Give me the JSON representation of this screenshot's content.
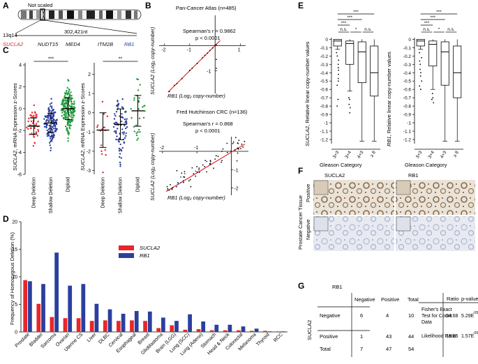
{
  "colors": {
    "red": "#e8262a",
    "blue": "#2b3f9e",
    "green": "#1f9a3a",
    "tissue_brown": "#8b6a4a",
    "tissue_blue": "#b8c0d8"
  },
  "panelA": {
    "letter": "A",
    "not_scaled": "Not scaled",
    "locus": "13q14",
    "span": "302,421nt",
    "genes": [
      "SUCLA2",
      "NUDT15",
      "MED4",
      "ITM2B",
      "RB1"
    ]
  },
  "panelB": {
    "letter": "B",
    "top": {
      "title": "Pan-Cancer Atlas (n=485)",
      "stat_line1": "Spearman's r = 0.9862",
      "stat_line2": "p < 0.0001",
      "xlabel": "RB1 (Log₂ copy-number)",
      "ylabel": "SUCLA2 (Log₂ copy-number)",
      "xticks": [
        "-2",
        "-1",
        "1"
      ],
      "yticks": [
        "-1"
      ]
    },
    "bottom": {
      "title": "Fred Hutchinson CRC (n=136)",
      "stat_line1": "Spearman's r = 0.868",
      "stat_line2": "p < 0.0001",
      "xlabel": "RB1 (Log₂ copy-number)",
      "ylabel": "SUCLA2 (Log₂ copy-number)",
      "xticks": [
        "-2",
        "-1"
      ],
      "yticks": [
        "-1",
        "-2"
      ]
    }
  },
  "panelC": {
    "letter": "C",
    "ylabel": "SUCLA2, mRNA Expression z-Scores",
    "categories": [
      "Deep Deletion",
      "Shallow Deletion",
      "Diploid"
    ],
    "left": {
      "sig": "***",
      "yticks": [
        "4",
        "2",
        "0",
        "-2",
        "-4",
        "-6"
      ],
      "means": [
        -1.6,
        -1.3,
        0.0
      ]
    },
    "right": {
      "sig": "**",
      "yticks": [
        "2",
        "1",
        "0",
        "-1",
        "-2",
        "-3"
      ],
      "means": [
        -0.9,
        -0.6,
        0.1
      ]
    }
  },
  "panelD": {
    "letter": "D",
    "ylabel": "Frequency of Homozygous Deletion (%)",
    "legend": [
      "SUCLA2",
      "RB1"
    ],
    "chart_data": {
      "type": "bar",
      "title": "",
      "xlabel": "",
      "ylabel": "Frequency of Homozygous Deletion (%)",
      "ylim": [
        0,
        20
      ],
      "yticks": [
        "0",
        "5",
        "10",
        "15",
        "20"
      ],
      "categories": [
        "Prostate",
        "Bladder",
        "Sarcoma",
        "Ovarian",
        "Uterine CS",
        "Liver",
        "DLBC",
        "Cervical",
        "Esophageal",
        "Breast",
        "Glioblastoma",
        "Brain (LGG)",
        "Lung (SCC)",
        "Lung (Adeno)",
        "Stomach",
        "Head & Neck",
        "Colorectal",
        "Melanoma",
        "Thyroid",
        "RCC"
      ],
      "series": [
        {
          "name": "SUCLA2",
          "values": [
            9.4,
            5.1,
            2.7,
            2.5,
            2.5,
            2.0,
            2.1,
            2.0,
            2.1,
            2.0,
            0.7,
            1.2,
            0.4,
            0.5,
            0.3,
            0.3,
            0.3,
            0.2,
            0.2,
            0.1
          ]
        },
        {
          "name": "RB1",
          "values": [
            9.2,
            8.7,
            14.4,
            8.4,
            8.7,
            5.1,
            4.1,
            3.3,
            3.8,
            3.7,
            2.6,
            2.0,
            3.2,
            1.9,
            1.3,
            1.3,
            1.0,
            0.6,
            0.1,
            0.1
          ]
        }
      ]
    }
  },
  "panelE": {
    "letter": "E",
    "xlabel": "Gleason Category",
    "categories": [
      "3+3",
      "3+4",
      "4+3",
      "≥ 8"
    ],
    "yticks": [
      "0",
      "-0.1",
      "-0.2",
      "-0.3",
      "-0.4",
      "-0.5",
      "-0.6",
      "-0.7",
      "-0.8",
      "-0.9",
      "-1",
      "-1.1",
      "-1.2"
    ],
    "left": {
      "ylabel": "SUCLA2, Relative linear copy-number values",
      "sig_top": [
        "***",
        "***",
        "***"
      ],
      "sig_pairs": [
        "n.s.",
        "*",
        "n.s."
      ]
    },
    "right": {
      "ylabel": "RB1, Relative linear copy-number values",
      "sig_top": [
        "***",
        "***",
        "***"
      ],
      "sig_pairs": [
        "n.s.",
        "*",
        "n.s."
      ]
    }
  },
  "panelF": {
    "letter": "F",
    "columns": [
      "SUCLA2",
      "RB1"
    ],
    "rows": [
      "Positive",
      "Negative"
    ],
    "side_label": "Prostate Cancer Tissue"
  },
  "panelG": {
    "letter": "G",
    "row_group": "SUCLA2",
    "col_group": "RB1",
    "col_headers": [
      "Negative",
      "Positive",
      "Total"
    ],
    "rows": [
      {
        "label": "Negative",
        "values": [
          "6",
          "4",
          "10"
        ]
      },
      {
        "label": "Positive",
        "values": [
          "1",
          "43",
          "44"
        ]
      },
      {
        "label": "Total",
        "values": [
          "7",
          "47",
          "54"
        ]
      }
    ],
    "stats_headers": [
      "Ratio",
      "p-value"
    ],
    "stats": [
      {
        "name_line1": "Fisher's   Exact",
        "name_line2": "Test  for  Count",
        "name_line3": "Data",
        "ratio": "54.68",
        "p": "5.29E",
        "p_exp": "-05"
      },
      {
        "name_line1": "Likelihood Ratio",
        "name_line2": "",
        "name_line3": "",
        "ratio": "18.65",
        "p": "1.57E",
        "p_exp": "-05"
      }
    ]
  }
}
